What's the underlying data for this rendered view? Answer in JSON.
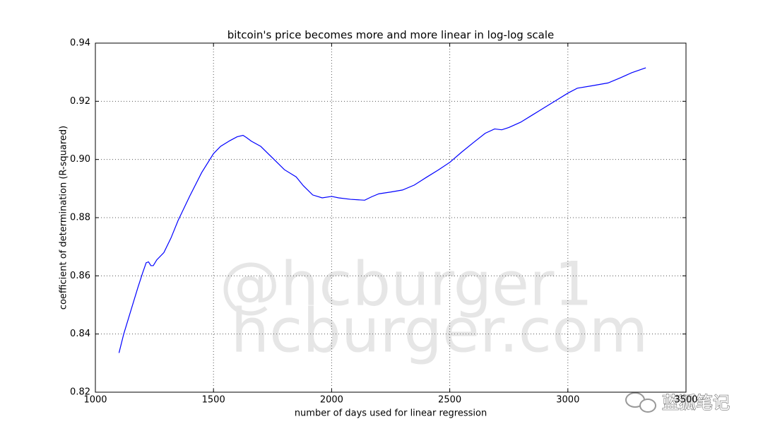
{
  "chart_data": {
    "type": "line",
    "title": "bitcoin's price becomes more and more linear in log-log scale",
    "x_label": "number of days used for linear regression",
    "y_label": "coefficient of determination (R-squared)",
    "watermarks": [
      "@hcburger1",
      "hcburger.com",
      "蓝狐笔记"
    ],
    "x": [
      1100,
      1120,
      1150,
      1180,
      1200,
      1215,
      1225,
      1235,
      1245,
      1260,
      1290,
      1320,
      1350,
      1400,
      1450,
      1500,
      1530,
      1570,
      1600,
      1625,
      1640,
      1660,
      1700,
      1750,
      1800,
      1850,
      1880,
      1920,
      1960,
      2000,
      2030,
      2080,
      2140,
      2170,
      2200,
      2250,
      2300,
      2350,
      2400,
      2450,
      2500,
      2550,
      2600,
      2650,
      2690,
      2720,
      2750,
      2800,
      2850,
      2900,
      2950,
      3000,
      3040,
      3100,
      3170,
      3220,
      3270,
      3330
    ],
    "series": [
      {
        "color": "#0000ff",
        "values": [
          0.8335,
          0.84,
          0.848,
          0.856,
          0.861,
          0.8645,
          0.8648,
          0.8635,
          0.8635,
          0.8655,
          0.868,
          0.873,
          0.879,
          0.8875,
          0.8955,
          0.902,
          0.9045,
          0.9065,
          0.9078,
          0.9083,
          0.9075,
          0.9063,
          0.9045,
          0.9005,
          0.8965,
          0.894,
          0.891,
          0.8878,
          0.8868,
          0.8873,
          0.8868,
          0.8863,
          0.886,
          0.8872,
          0.8882,
          0.8888,
          0.8895,
          0.8912,
          0.8938,
          0.8963,
          0.899,
          0.9025,
          0.9058,
          0.909,
          0.9105,
          0.9102,
          0.911,
          0.9128,
          0.9153,
          0.9178,
          0.9203,
          0.9228,
          0.9245,
          0.9253,
          0.9263,
          0.928,
          0.9298,
          0.9315
        ]
      }
    ],
    "xlim": [
      1000,
      3500
    ],
    "xticks": [
      1000,
      1500,
      2000,
      2500,
      3000,
      3500
    ],
    "ylim": [
      0.82,
      0.94
    ],
    "yticks": [
      0.82,
      0.84,
      0.86,
      0.88,
      {
        "value": 0.9,
        "label": "0.90"
      },
      0.92,
      0.94
    ],
    "grid": true
  }
}
